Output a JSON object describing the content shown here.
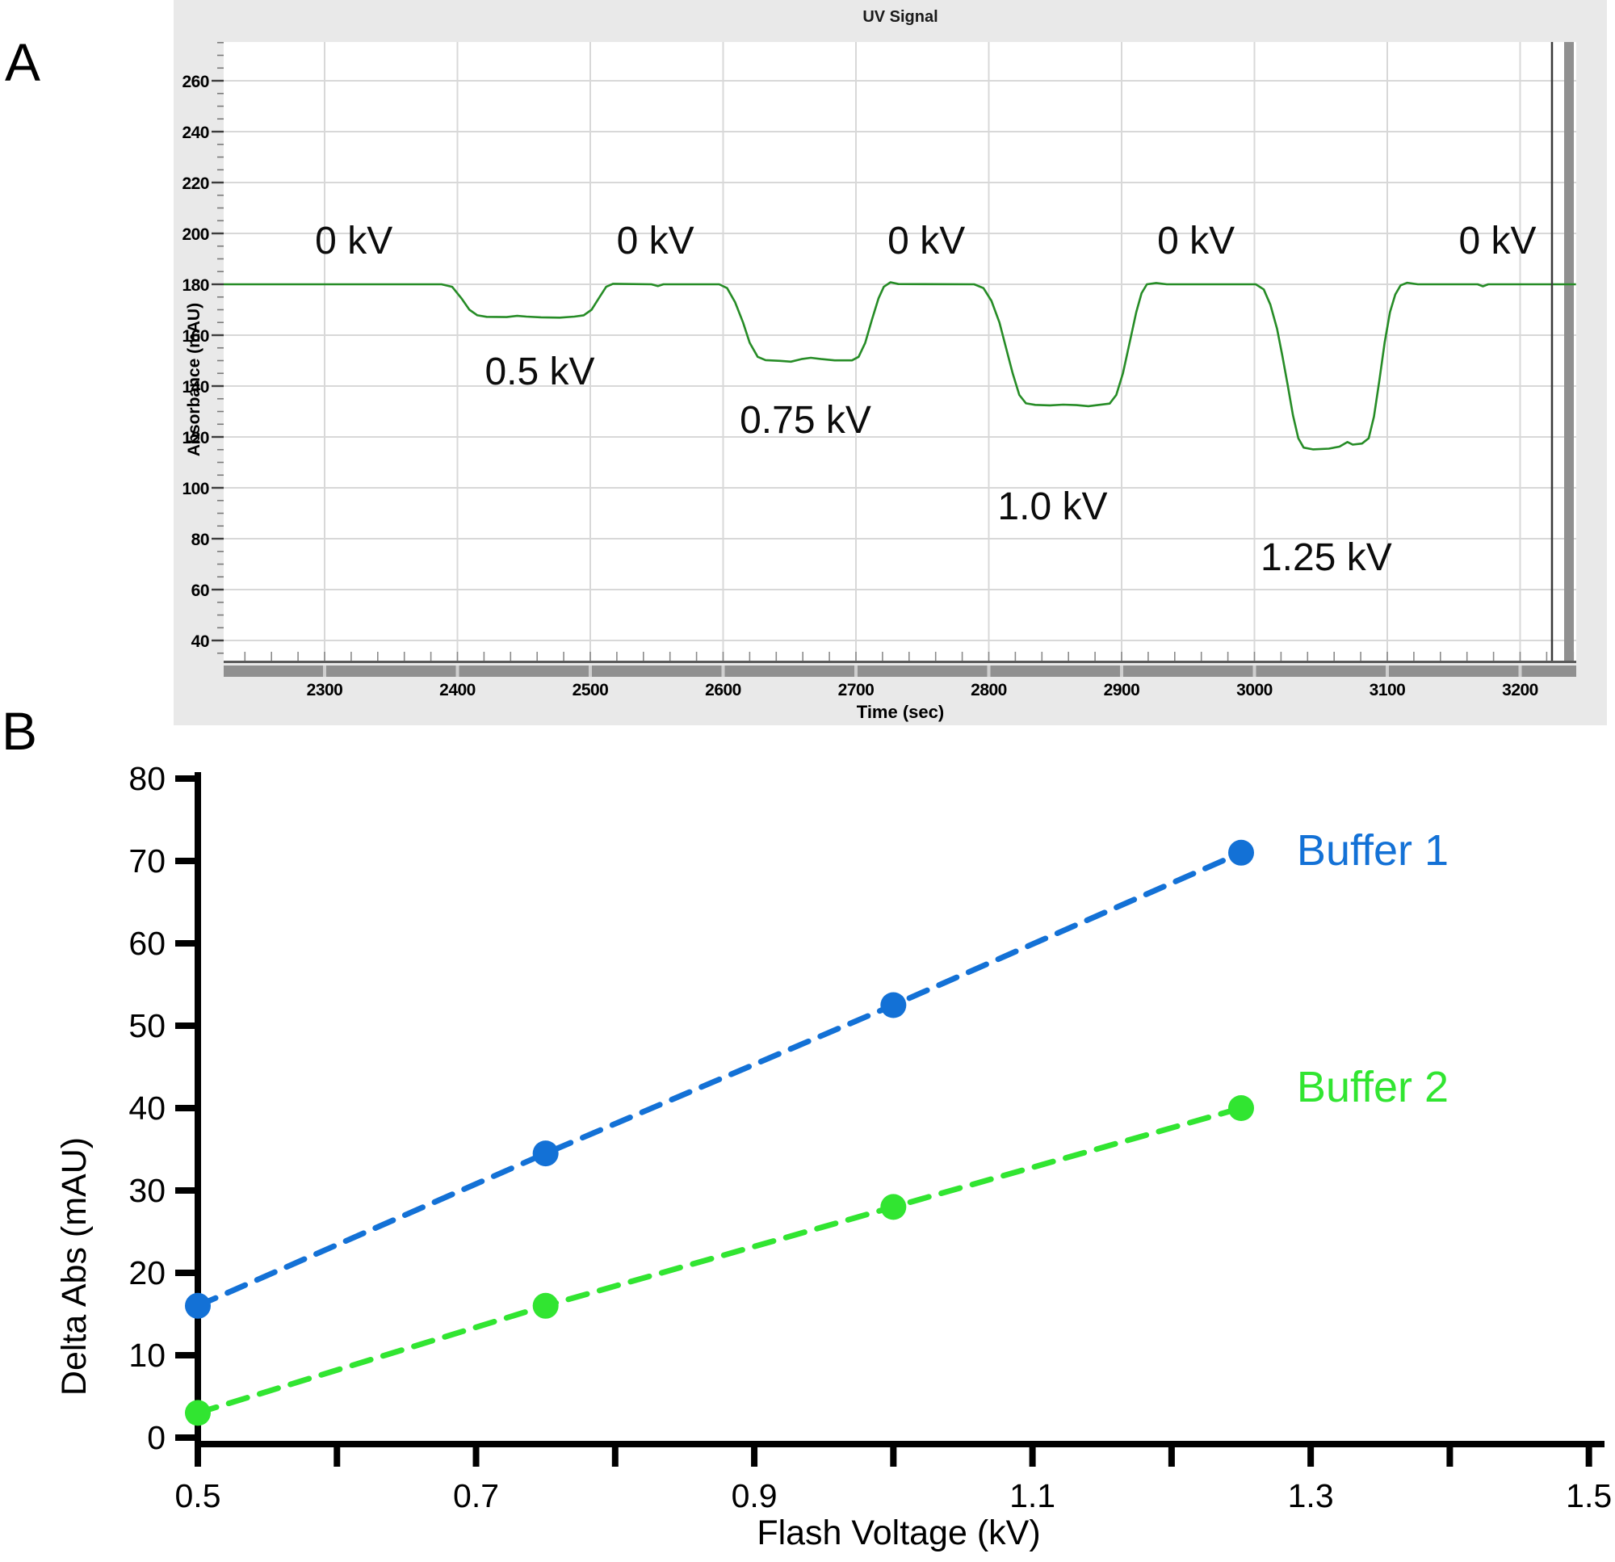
{
  "figure": {
    "panel_a": {
      "panel_letter": "A"
    },
    "panel_b": {
      "panel_letter": "B"
    }
  },
  "chart_data": [
    {
      "type": "line",
      "title": "UV Signal",
      "xlabel": "Time (sec)",
      "ylabel": "Absorbance (mAU)",
      "xlim": [
        2224,
        3242
      ],
      "ylim": [
        30,
        276
      ],
      "xticks": [
        2300,
        2400,
        2500,
        2600,
        2700,
        2800,
        2900,
        3000,
        3100,
        3200
      ],
      "yticks": [
        260,
        240,
        220,
        200,
        180,
        160,
        140,
        120,
        100,
        80,
        60,
        40
      ],
      "x_minor_step": 20,
      "y_minor_step": 5,
      "grid": "on",
      "line_color": "#268c26",
      "baseline_mAU": 180,
      "cursor_time": 3224,
      "steps": [
        {
          "voltage_label": "0.5 kV",
          "plateau_mAU": 167,
          "t_on": 2405,
          "t_off": 2500
        },
        {
          "voltage_label": "0.75 kV",
          "plateau_mAU": 150,
          "t_on": 2610,
          "t_off": 2702
        },
        {
          "voltage_label": "1.0 kV",
          "plateau_mAU": 132.5,
          "t_on": 2802,
          "t_off": 2896
        },
        {
          "voltage_label": "1.25 kV",
          "plateau_mAU": 115,
          "t_on": 3007,
          "t_off": 3090
        }
      ],
      "annotations": [
        {
          "label": "0 kV",
          "t": 2322,
          "mAU": 197.5
        },
        {
          "label": "0 kV",
          "t": 2549,
          "mAU": 197.5
        },
        {
          "label": "0 kV",
          "t": 2753,
          "mAU": 197.5
        },
        {
          "label": "0 kV",
          "t": 2956,
          "mAU": 197.5
        },
        {
          "label": "0 kV",
          "t": 3183,
          "mAU": 197.5
        },
        {
          "label": "0.5 kV",
          "t": 2462,
          "mAU": 146
        },
        {
          "label": "0.75 kV",
          "t": 2662,
          "mAU": 127
        },
        {
          "label": "1.0 kV",
          "t": 2848,
          "mAU": 93
        },
        {
          "label": "1.25 kV",
          "t": 3054,
          "mAU": 73
        }
      ],
      "trace": [
        [
          2224,
          180
        ],
        [
          2388,
          180
        ],
        [
          2396,
          179
        ],
        [
          2403,
          174.5
        ],
        [
          2409,
          170
        ],
        [
          2415,
          167.8
        ],
        [
          2422,
          167.2
        ],
        [
          2437,
          167.1
        ],
        [
          2445,
          167.6
        ],
        [
          2452,
          167.3
        ],
        [
          2463,
          167
        ],
        [
          2477,
          166.9
        ],
        [
          2488,
          167.3
        ],
        [
          2495,
          167.8
        ],
        [
          2501,
          170
        ],
        [
          2507,
          175
        ],
        [
          2512,
          179
        ],
        [
          2517,
          180.2
        ],
        [
          2546,
          180
        ],
        [
          2551,
          179.3
        ],
        [
          2555,
          180
        ],
        [
          2597,
          180
        ],
        [
          2603,
          178.5
        ],
        [
          2609,
          173
        ],
        [
          2615,
          165
        ],
        [
          2620,
          157
        ],
        [
          2626,
          151.5
        ],
        [
          2632,
          150.2
        ],
        [
          2643,
          149.9
        ],
        [
          2651,
          149.6
        ],
        [
          2659,
          150.6
        ],
        [
          2666,
          151.1
        ],
        [
          2674,
          150.6
        ],
        [
          2684,
          150.1
        ],
        [
          2697,
          150.1
        ],
        [
          2702,
          151.5
        ],
        [
          2707,
          157
        ],
        [
          2712,
          166
        ],
        [
          2717,
          174.5
        ],
        [
          2721,
          179
        ],
        [
          2726,
          180.8
        ],
        [
          2732,
          180.1
        ],
        [
          2789,
          180
        ],
        [
          2796,
          178.5
        ],
        [
          2802,
          173.5
        ],
        [
          2808,
          165
        ],
        [
          2813,
          155
        ],
        [
          2818,
          145
        ],
        [
          2823,
          136.5
        ],
        [
          2828,
          133.2
        ],
        [
          2835,
          132.6
        ],
        [
          2846,
          132.4
        ],
        [
          2856,
          132.7
        ],
        [
          2866,
          132.5
        ],
        [
          2875,
          132.1
        ],
        [
          2883,
          132.6
        ],
        [
          2891,
          133.1
        ],
        [
          2896,
          136.5
        ],
        [
          2901,
          145
        ],
        [
          2906,
          157
        ],
        [
          2911,
          169
        ],
        [
          2915,
          176.5
        ],
        [
          2919,
          180
        ],
        [
          2926,
          180.5
        ],
        [
          2934,
          180
        ],
        [
          3001,
          180
        ],
        [
          3007,
          178
        ],
        [
          3012,
          172
        ],
        [
          3017,
          162.5
        ],
        [
          3021,
          152
        ],
        [
          3025,
          140.5
        ],
        [
          3029,
          128.5
        ],
        [
          3033,
          119.5
        ],
        [
          3037,
          115.8
        ],
        [
          3044,
          115.1
        ],
        [
          3056,
          115.4
        ],
        [
          3064,
          116.2
        ],
        [
          3070,
          118
        ],
        [
          3074,
          117
        ],
        [
          3081,
          117.4
        ],
        [
          3086,
          119.5
        ],
        [
          3090,
          128
        ],
        [
          3094,
          142
        ],
        [
          3098,
          157
        ],
        [
          3102,
          169
        ],
        [
          3106,
          176
        ],
        [
          3110,
          179.6
        ],
        [
          3115,
          180.6
        ],
        [
          3123,
          180
        ],
        [
          3168,
          180
        ],
        [
          3172,
          179.2
        ],
        [
          3176,
          180
        ],
        [
          3242,
          180
        ]
      ]
    },
    {
      "type": "scatter",
      "title": "",
      "xlabel": "Flash Voltage (kV)",
      "ylabel": "Delta Abs (mAU)",
      "xlim": [
        0.5,
        1.5
      ],
      "ylim": [
        0,
        80
      ],
      "xticks_labeled": [
        {
          "v": 0.5,
          "label": "0.5"
        },
        {
          "v": 0.7,
          "label": "0.7"
        },
        {
          "v": 0.9,
          "label": "0.9"
        },
        {
          "v": 1.1,
          "label": "1.1"
        },
        {
          "v": 1.3,
          "label": "1.3"
        },
        {
          "v": 1.5,
          "label": "1.5"
        }
      ],
      "x_tick_step": 0.1,
      "yticks": [
        0,
        10,
        20,
        30,
        40,
        50,
        60,
        70,
        80
      ],
      "grid": "off",
      "legend_position": "right-of-last-point",
      "x": [
        0.5,
        0.75,
        1.0,
        1.25
      ],
      "series": [
        {
          "name": "Buffer 1",
          "color": "#1371d6",
          "style": "dashed",
          "values": [
            16,
            34.5,
            52.5,
            71
          ]
        },
        {
          "name": "Buffer 2",
          "color": "#31e531",
          "style": "dashed",
          "values": [
            3,
            16,
            28,
            40
          ]
        }
      ]
    }
  ]
}
